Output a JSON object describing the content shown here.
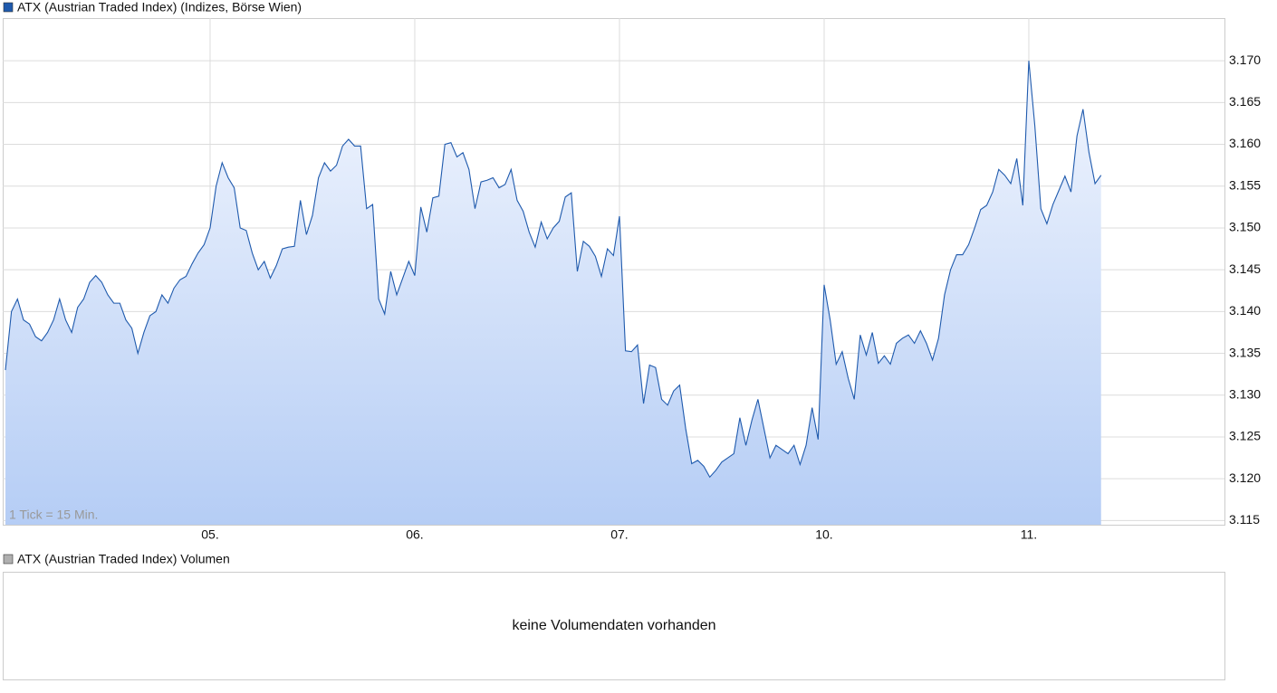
{
  "chart_data": {
    "type": "line",
    "title": "ATX (Austrian Traded Index) (Indizes, Börse Wien)",
    "annotation": "1 Tick = 15 Min.",
    "color": "#1f5aad",
    "grid": true,
    "values": [
      3.133,
      3.14,
      3.1415,
      3.139,
      3.1385,
      3.137,
      3.1365,
      3.1375,
      3.139,
      3.1415,
      3.139,
      3.1375,
      3.1405,
      3.1415,
      3.1435,
      3.1443,
      3.1435,
      3.142,
      3.141,
      3.141,
      3.139,
      3.138,
      3.135,
      3.1375,
      3.1395,
      3.14,
      3.142,
      3.141,
      3.1428,
      3.1438,
      3.1442,
      3.1457,
      3.147,
      3.148,
      3.15,
      3.155,
      3.1578,
      3.156,
      3.1548,
      3.15,
      3.1497,
      3.147,
      3.145,
      3.146,
      3.144,
      3.1455,
      3.1475,
      3.1477,
      3.1478,
      3.1533,
      3.1492,
      3.1515,
      3.156,
      3.1578,
      3.1568,
      3.1575,
      3.1598,
      3.1606,
      3.1598,
      3.1598,
      3.1523,
      3.1528,
      3.1415,
      3.1397,
      3.1448,
      3.142,
      3.144,
      3.146,
      3.1443,
      3.1525,
      3.1495,
      3.1536,
      3.1538,
      3.16,
      3.1602,
      3.1585,
      3.159,
      3.157,
      3.1523,
      3.1555,
      3.1557,
      3.156,
      3.1548,
      3.1552,
      3.157,
      3.1533,
      3.152,
      3.1495,
      3.1477,
      3.1507,
      3.1487,
      3.15,
      3.1508,
      3.1537,
      3.1542,
      3.1448,
      3.1484,
      3.1478,
      3.1466,
      3.1442,
      3.1475,
      3.1467,
      3.1514,
      3.1353,
      3.1352,
      3.136,
      3.129,
      3.1336,
      3.1333,
      3.1295,
      3.1288,
      3.1305,
      3.1312,
      3.126,
      3.1218,
      3.1222,
      3.1215,
      3.1202,
      3.121,
      3.122,
      3.1225,
      3.123,
      3.1273,
      3.124,
      3.127,
      3.1295,
      3.126,
      3.1225,
      3.124,
      3.1235,
      3.123,
      3.124,
      3.1217,
      3.124,
      3.1285,
      3.1247,
      3.1432,
      3.139,
      3.1337,
      3.1352,
      3.132,
      3.1295,
      3.1372,
      3.1348,
      3.1375,
      3.1338,
      3.1347,
      3.1337,
      3.1362,
      3.1368,
      3.1372,
      3.1362,
      3.1377,
      3.1362,
      3.1342,
      3.1368,
      3.142,
      3.145,
      3.1468,
      3.1468,
      3.148,
      3.15,
      3.1522,
      3.1527,
      3.1543,
      3.157,
      3.1563,
      3.1553,
      3.1583,
      3.1527,
      3.17,
      3.1622,
      3.1523,
      3.1505,
      3.1528,
      3.1545,
      3.1562,
      3.1543,
      3.161,
      3.1642,
      3.159,
      3.1553,
      3.1563
    ],
    "xlim": [
      -0.45,
      202.5
    ],
    "xticks": [
      {
        "value": 34,
        "label": "05."
      },
      {
        "value": 68,
        "label": "06."
      },
      {
        "value": 102,
        "label": "07."
      },
      {
        "value": 136,
        "label": "10."
      },
      {
        "value": 170,
        "label": "11."
      }
    ],
    "ylim": [
      3.1145,
      3.1751
    ],
    "yticks": [
      3.115,
      {
        "value": 3.12,
        "label": "3.120"
      },
      3.125,
      {
        "value": 3.13,
        "label": "3.130"
      },
      3.135,
      {
        "value": 3.14,
        "label": "3.140"
      },
      3.145,
      {
        "value": 3.15,
        "label": "3.150"
      },
      3.155,
      {
        "value": 3.16,
        "label": "3.160"
      },
      3.165,
      {
        "value": 3.17,
        "label": "3.170"
      }
    ]
  },
  "volume": {
    "title": "ATX (Austrian Traded Index) Volumen",
    "message": "keine Volumendaten vorhanden"
  }
}
